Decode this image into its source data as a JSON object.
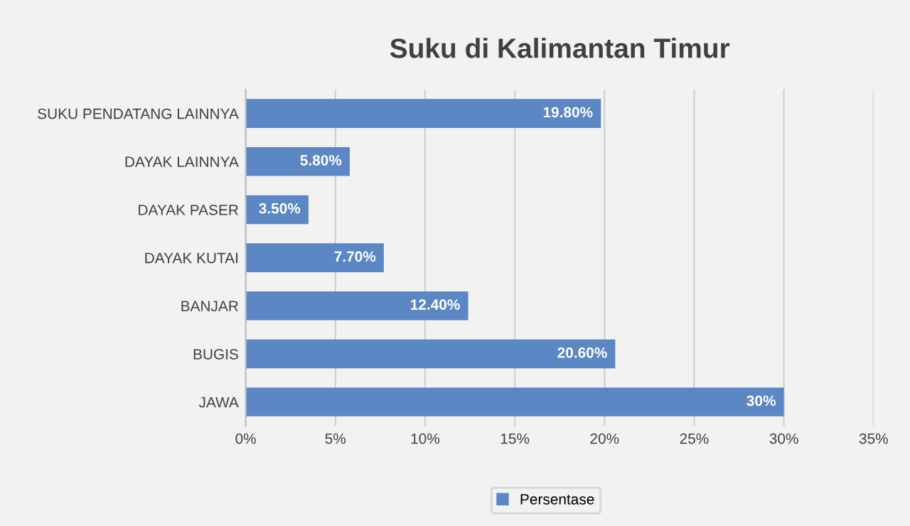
{
  "chart_data": {
    "type": "bar",
    "orientation": "horizontal",
    "title": "Suku di Kalimantan Timur",
    "categories": [
      "SUKU PENDATANG LAINNYA",
      "DAYAK LAINNYA",
      "DAYAK PASER",
      "DAYAK KUTAI",
      "BANJAR",
      "BUGIS",
      "JAWA"
    ],
    "series": [
      {
        "name": "Persentase",
        "color": "#5b87c4",
        "values": [
          19.8,
          5.8,
          3.5,
          7.7,
          12.4,
          20.6,
          30
        ],
        "value_labels": [
          "19.80%",
          "5.80%",
          "3.50%",
          "7.70%",
          "12.40%",
          "20.60%",
          "30%"
        ]
      }
    ],
    "xlim": [
      0,
      35
    ],
    "xticks": [
      {
        "value": 0,
        "label": "0%"
      },
      {
        "value": 5,
        "label": "5%"
      },
      {
        "value": 10,
        "label": "10%"
      },
      {
        "value": 15,
        "label": "15%"
      },
      {
        "value": 20,
        "label": "20%"
      },
      {
        "value": 25,
        "label": "25%"
      },
      {
        "value": 30,
        "label": "30%"
      },
      {
        "value": 35,
        "label": "35%"
      }
    ],
    "grid": "x",
    "legend": "bottom"
  }
}
